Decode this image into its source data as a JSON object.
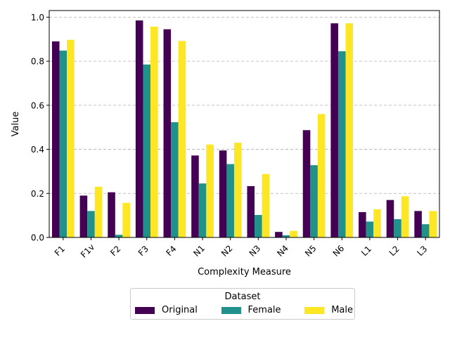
{
  "chart_data": {
    "type": "bar",
    "xlabel": "Complexity Measure",
    "ylabel": "Value",
    "ylim": [
      0,
      1.03
    ],
    "yticks": [
      "0.0",
      "0.2",
      "0.4",
      "0.6",
      "0.8",
      "1.0"
    ],
    "grid": "y-dashed",
    "legend_title": "Dataset",
    "legend_position": "bottom-center",
    "categories": [
      "F1",
      "F1v",
      "F2",
      "F3",
      "F4",
      "N1",
      "N2",
      "N3",
      "N4",
      "N5",
      "N6",
      "L1",
      "L2",
      "L3"
    ],
    "series": [
      {
        "name": "Original",
        "color": "#440154",
        "values": [
          0.89,
          0.19,
          0.205,
          0.985,
          0.945,
          0.372,
          0.395,
          0.233,
          0.025,
          0.487,
          0.972,
          0.115,
          0.17,
          0.12
        ]
      },
      {
        "name": "Female",
        "color": "#21918c",
        "values": [
          0.848,
          0.12,
          0.012,
          0.785,
          0.523,
          0.245,
          0.333,
          0.102,
          0.01,
          0.328,
          0.845,
          0.072,
          0.083,
          0.06
        ]
      },
      {
        "name": "Male",
        "color": "#fde725",
        "values": [
          0.897,
          0.23,
          0.157,
          0.957,
          0.892,
          0.422,
          0.43,
          0.288,
          0.03,
          0.56,
          0.972,
          0.128,
          0.187,
          0.12
        ]
      }
    ]
  }
}
